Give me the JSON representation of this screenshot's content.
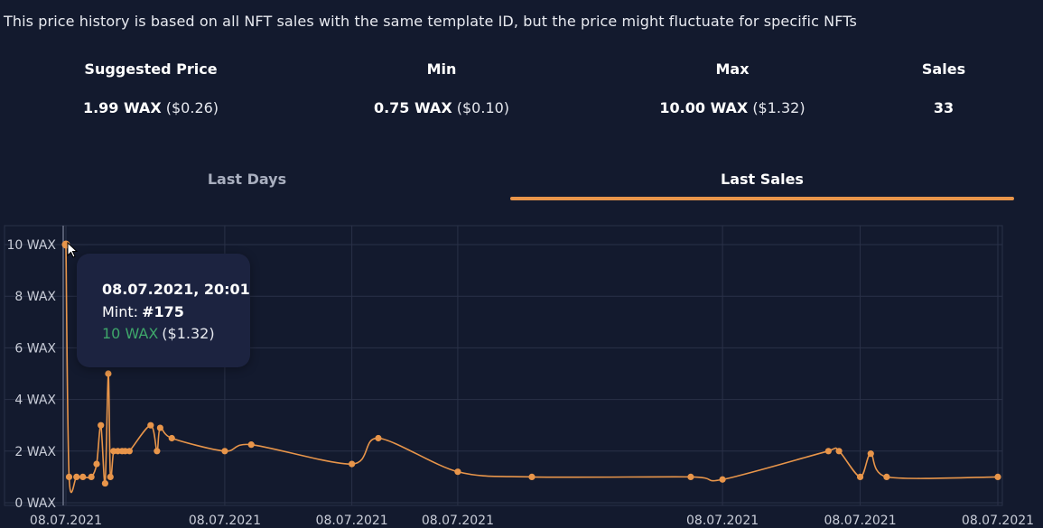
{
  "note": "This price history is based on all NFT sales with the same template ID, but the price might fluctuate for specific NFTs",
  "stats": [
    {
      "label": "Suggested Price",
      "value": "1.99 WAX",
      "usd": "($0.26)"
    },
    {
      "label": "Min",
      "value": "0.75 WAX",
      "usd": "($0.10)"
    },
    {
      "label": "Max",
      "value": "10.00 WAX",
      "usd": "($1.32)"
    },
    {
      "label": "Sales",
      "value": "33",
      "usd": ""
    }
  ],
  "tabs": {
    "last_days": "Last Days",
    "last_sales": "Last Sales",
    "active": "last_sales"
  },
  "tooltip": {
    "date": "08.07.2021, 20:01",
    "mint_label": "Mint:",
    "mint_value": "#175",
    "wax": "10 WAX",
    "usd": "($1.32)"
  },
  "colors": {
    "line": "#e8954a",
    "tooltip_wax": "#3ea66a",
    "background": "#131a2e"
  },
  "chart_data": {
    "type": "line",
    "title": "",
    "xlabel": "",
    "ylabel": "",
    "y_unit": "WAX",
    "ylim": [
      0,
      10
    ],
    "y_ticks": [
      "0 WAX",
      "2 WAX",
      "4 WAX",
      "6 WAX",
      "8 WAX",
      "10 WAX"
    ],
    "x_ticks": [
      "08.07.2021",
      "08.07.2021",
      "08.07.2021",
      "08.07.2021",
      "08.07.2021",
      "08.07.2021",
      "08.07.2021"
    ],
    "grid": true,
    "series": [
      {
        "name": "",
        "x": [
          0,
          0.3,
          1,
          1.6,
          2.4,
          2.9,
          3.3,
          3.7,
          4,
          4.2,
          4.5,
          4.9,
          5.3,
          5.6,
          6,
          8,
          8.6,
          8.9,
          10,
          15,
          17.5,
          27,
          29.5,
          37,
          44,
          59,
          62,
          72,
          73,
          75,
          76,
          77.5,
          88
        ],
        "y": [
          10,
          1,
          1,
          1,
          1,
          1.5,
          3,
          0.75,
          5,
          1,
          2,
          2,
          2,
          2,
          2,
          3,
          2,
          2.9,
          2.5,
          2,
          2.25,
          1.5,
          2.5,
          1.2,
          1,
          1,
          0.9,
          2,
          2,
          1,
          1.9,
          1,
          1
        ]
      }
    ]
  }
}
